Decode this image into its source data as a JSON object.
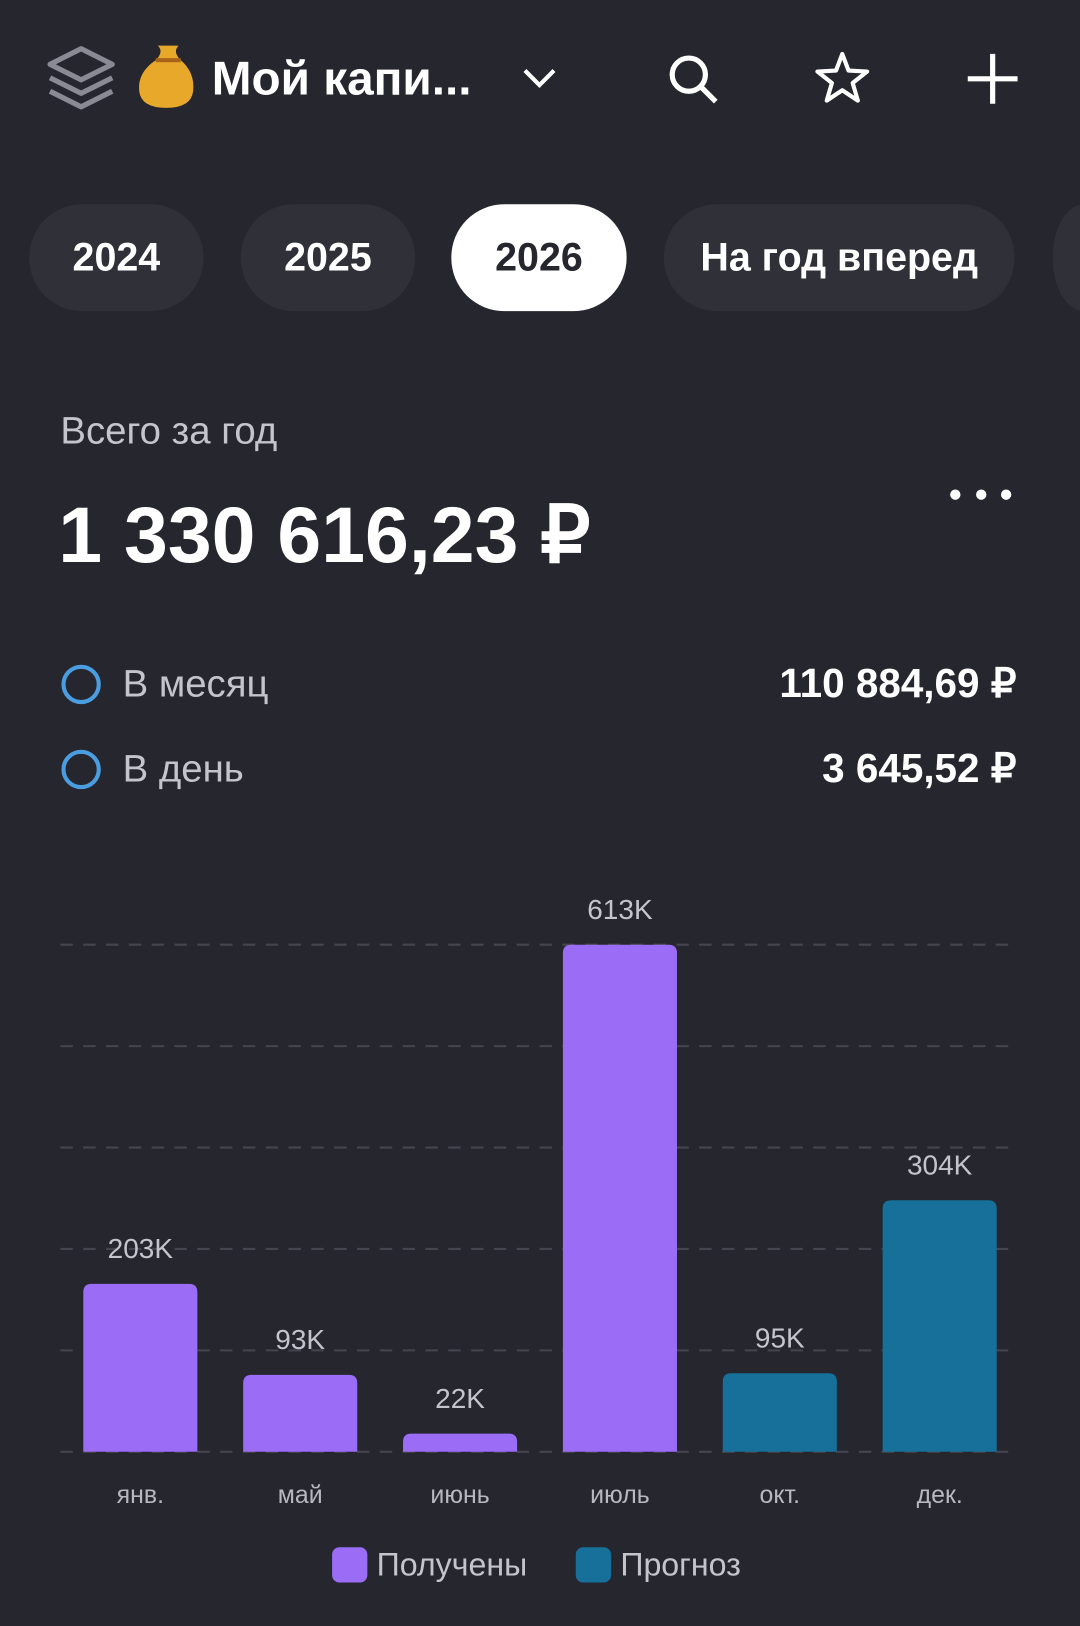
{
  "header": {
    "title": "Мой капи..."
  },
  "tabs": [
    "2024",
    "2025",
    "2026",
    "На год вперед"
  ],
  "active_tab": 2,
  "summary": {
    "label": "Всего за год",
    "total": "1 330 616,23 ₽",
    "rows": [
      {
        "label": "В месяц",
        "value": "110 884,69 ₽"
      },
      {
        "label": "В день",
        "value": "3 645,52 ₽"
      }
    ]
  },
  "chart_data": {
    "type": "bar",
    "categories": [
      "янв.",
      "май",
      "июнь",
      "июль",
      "окт.",
      "дек."
    ],
    "series": [
      {
        "name": "Получены",
        "color": "#9b6cf6",
        "values": [
          203000,
          93000,
          22000,
          613000,
          null,
          null
        ],
        "value_labels": [
          "203K",
          "93K",
          "22K",
          "613K",
          null,
          null
        ]
      },
      {
        "name": "Прогноз",
        "color": "#16709a",
        "values": [
          null,
          null,
          null,
          null,
          95000,
          304000
        ],
        "value_labels": [
          null,
          null,
          null,
          null,
          "95K",
          "304K"
        ]
      }
    ],
    "ylim": [
      0,
      613000
    ],
    "yticks": [
      0,
      122600,
      245200,
      367800,
      490400,
      613000
    ],
    "show_tick_labels": false,
    "grid": true
  }
}
